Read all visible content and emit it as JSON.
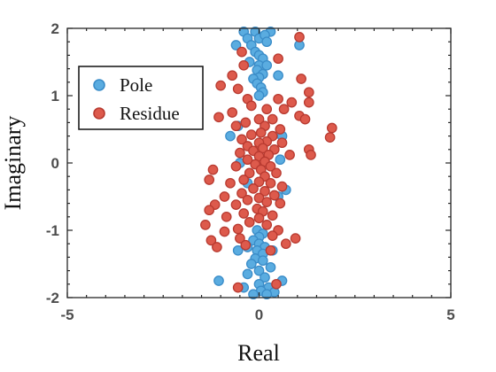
{
  "chart_data": {
    "type": "scatter",
    "title": "",
    "xlabel": "Real",
    "ylabel": "Imaginary",
    "xlim": [
      -5,
      5
    ],
    "ylim": [
      -2,
      2
    ],
    "xticks": [
      -5,
      0,
      5
    ],
    "yticks": [
      -2,
      -1,
      0,
      1,
      2
    ],
    "grid": false,
    "legend_position": "top-left",
    "series": [
      {
        "name": "Pole",
        "color": "#5aace0",
        "edge": "#3a8cc8",
        "points": [
          [
            -0.4,
            1.95
          ],
          [
            -0.1,
            1.95
          ],
          [
            0.3,
            1.95
          ],
          [
            -0.3,
            1.85
          ],
          [
            0.0,
            1.85
          ],
          [
            0.15,
            1.9
          ],
          [
            -0.6,
            1.75
          ],
          [
            -0.2,
            1.75
          ],
          [
            0.2,
            1.8
          ],
          [
            1.05,
            1.75
          ],
          [
            -0.1,
            1.65
          ],
          [
            0.0,
            1.6
          ],
          [
            0.1,
            1.55
          ],
          [
            -0.25,
            1.5
          ],
          [
            0.0,
            1.45
          ],
          [
            0.2,
            1.45
          ],
          [
            -0.05,
            1.38
          ],
          [
            0.1,
            1.32
          ],
          [
            0.0,
            1.27
          ],
          [
            -0.15,
            1.25
          ],
          [
            0.5,
            1.3
          ],
          [
            -0.05,
            1.18
          ],
          [
            0.05,
            1.12
          ],
          [
            0.1,
            1.05
          ],
          [
            0.0,
            1.0
          ],
          [
            -0.55,
            0.55
          ],
          [
            0.6,
            0.4
          ],
          [
            -0.75,
            0.4
          ],
          [
            -0.5,
            0.0
          ],
          [
            0.55,
            0.05
          ],
          [
            -0.3,
            -0.3
          ],
          [
            0.7,
            -0.4
          ],
          [
            0.5,
            -0.5
          ],
          [
            -0.05,
            -1.0
          ],
          [
            0.1,
            -1.05
          ],
          [
            0.0,
            -1.1
          ],
          [
            -0.15,
            -1.15
          ],
          [
            0.0,
            -1.2
          ],
          [
            0.15,
            -1.25
          ],
          [
            -0.3,
            -1.25
          ],
          [
            -0.05,
            -1.3
          ],
          [
            0.1,
            -1.35
          ],
          [
            -0.55,
            -1.3
          ],
          [
            0.35,
            -1.3
          ],
          [
            -0.1,
            -1.42
          ],
          [
            0.1,
            -1.45
          ],
          [
            -0.2,
            -1.5
          ],
          [
            0.3,
            -1.55
          ],
          [
            0.0,
            -1.6
          ],
          [
            -0.3,
            -1.65
          ],
          [
            0.15,
            -1.7
          ],
          [
            -1.05,
            -1.75
          ],
          [
            0.6,
            -1.75
          ],
          [
            0.0,
            -1.8
          ],
          [
            0.25,
            -1.85
          ],
          [
            -0.4,
            -1.85
          ],
          [
            0.05,
            -1.9
          ],
          [
            0.4,
            -1.92
          ],
          [
            -0.15,
            -1.95
          ],
          [
            0.2,
            -1.95
          ]
        ]
      },
      {
        "name": "Residue",
        "color": "#dd5a4c",
        "edge": "#b83a30",
        "points": [
          [
            1.05,
            1.87
          ],
          [
            -0.45,
            1.65
          ],
          [
            0.5,
            1.55
          ],
          [
            -0.4,
            1.45
          ],
          [
            -0.7,
            1.3
          ],
          [
            1.1,
            1.25
          ],
          [
            -1.0,
            1.15
          ],
          [
            -0.55,
            1.1
          ],
          [
            1.3,
            1.05
          ],
          [
            0.5,
            0.95
          ],
          [
            -0.3,
            0.95
          ],
          [
            0.85,
            0.9
          ],
          [
            1.3,
            0.9
          ],
          [
            -0.2,
            0.85
          ],
          [
            0.65,
            0.8
          ],
          [
            0.2,
            0.8
          ],
          [
            -0.7,
            0.75
          ],
          [
            1.05,
            0.7
          ],
          [
            -1.05,
            0.68
          ],
          [
            0.35,
            0.65
          ],
          [
            0.0,
            0.65
          ],
          [
            1.2,
            0.65
          ],
          [
            -0.35,
            0.6
          ],
          [
            0.15,
            0.55
          ],
          [
            -0.6,
            0.55
          ],
          [
            0.55,
            0.5
          ],
          [
            1.9,
            0.52
          ],
          [
            0.05,
            0.45
          ],
          [
            -0.2,
            0.42
          ],
          [
            0.35,
            0.4
          ],
          [
            1.85,
            0.38
          ],
          [
            -0.45,
            0.35
          ],
          [
            0.2,
            0.32
          ],
          [
            0.0,
            0.3
          ],
          [
            0.6,
            0.3
          ],
          [
            -0.3,
            0.25
          ],
          [
            0.1,
            0.22
          ],
          [
            -0.15,
            0.18
          ],
          [
            0.4,
            0.2
          ],
          [
            1.3,
            0.2
          ],
          [
            -0.5,
            0.15
          ],
          [
            0.25,
            0.12
          ],
          [
            0.0,
            0.1
          ],
          [
            0.8,
            0.12
          ],
          [
            -0.3,
            0.05
          ],
          [
            0.15,
            0.02
          ],
          [
            1.35,
            0.12
          ],
          [
            -0.1,
            -0.02
          ],
          [
            0.3,
            -0.05
          ],
          [
            -0.6,
            -0.05
          ],
          [
            0.05,
            -0.1
          ],
          [
            -1.2,
            -0.1
          ],
          [
            -0.25,
            -0.15
          ],
          [
            0.45,
            -0.15
          ],
          [
            0.15,
            -0.2
          ],
          [
            -1.3,
            -0.25
          ],
          [
            -0.4,
            -0.25
          ],
          [
            0.0,
            -0.28
          ],
          [
            0.3,
            -0.3
          ],
          [
            -0.75,
            -0.3
          ],
          [
            0.6,
            -0.35
          ],
          [
            -0.15,
            -0.38
          ],
          [
            0.15,
            -0.42
          ],
          [
            -0.45,
            -0.45
          ],
          [
            0.4,
            -0.48
          ],
          [
            -0.9,
            -0.5
          ],
          [
            0.0,
            -0.52
          ],
          [
            -0.3,
            -0.55
          ],
          [
            0.2,
            -0.58
          ],
          [
            -1.15,
            -0.62
          ],
          [
            -0.6,
            -0.62
          ],
          [
            0.55,
            -0.6
          ],
          [
            -0.05,
            -0.68
          ],
          [
            -1.3,
            -0.7
          ],
          [
            0.1,
            -0.72
          ],
          [
            -0.4,
            -0.75
          ],
          [
            0.35,
            -0.78
          ],
          [
            -0.85,
            -0.8
          ],
          [
            0.0,
            -0.82
          ],
          [
            -0.25,
            -0.88
          ],
          [
            -1.4,
            -0.92
          ],
          [
            0.2,
            -0.92
          ],
          [
            -0.55,
            -0.98
          ],
          [
            0.5,
            -1.0
          ],
          [
            -0.9,
            -1.02
          ],
          [
            0.35,
            -1.08
          ],
          [
            -0.5,
            -1.12
          ],
          [
            0.95,
            -1.12
          ],
          [
            -1.25,
            -1.15
          ],
          [
            0.7,
            -1.2
          ],
          [
            -0.35,
            -1.22
          ],
          [
            -1.1,
            -1.25
          ],
          [
            0.3,
            -1.3
          ],
          [
            -0.55,
            -1.85
          ],
          [
            0.45,
            -1.8
          ]
        ]
      }
    ]
  }
}
